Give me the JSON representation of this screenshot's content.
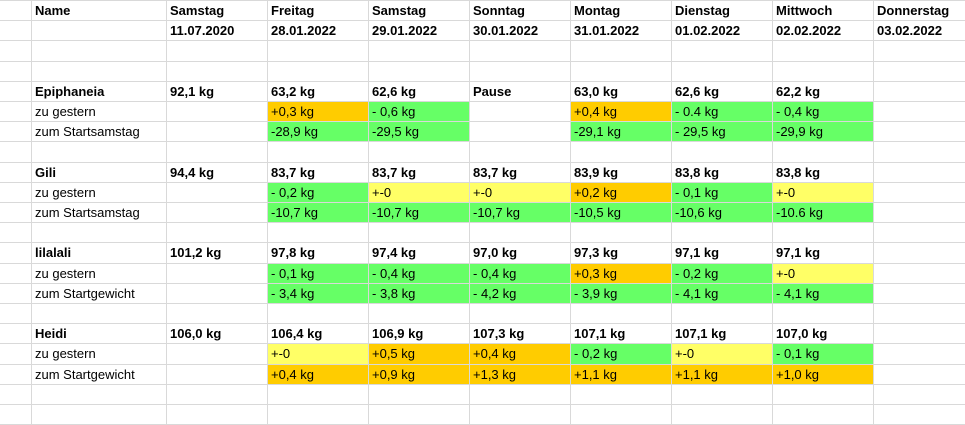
{
  "headers": {
    "name": "Name",
    "days": [
      {
        "day": "Samstag",
        "date": "11.07.2020"
      },
      {
        "day": "Freitag",
        "date": "28.01.2022"
      },
      {
        "day": "Samstag",
        "date": "29.01.2022"
      },
      {
        "day": "Sonntag",
        "date": "30.01.2022"
      },
      {
        "day": "Montag",
        "date": "31.01.2022"
      },
      {
        "day": "Dienstag",
        "date": "01.02.2022"
      },
      {
        "day": "Mittwoch",
        "date": "02.02.2022"
      },
      {
        "day": "Donnerstag",
        "date": "03.02.2022"
      }
    ]
  },
  "highlight_colors": {
    "green": "#66ff66",
    "orange": "#ffcc00",
    "yellow": "#ffff66"
  },
  "groups": [
    {
      "name": "Epiphaneia",
      "weights": [
        "92,1 kg",
        "63,2 kg",
        "62,6 kg",
        "Pause",
        "63,0 kg",
        "62,6 kg",
        "62,2 kg",
        ""
      ],
      "diff_label": "zu gestern",
      "diffs": [
        "",
        "+0,3 kg",
        "- 0,6 kg",
        "",
        "+0,4 kg",
        "- 0.4 kg",
        "- 0,4 kg",
        ""
      ],
      "diff_colors": [
        "",
        "orange",
        "green",
        "",
        "orange",
        "green",
        "green",
        ""
      ],
      "total_label": "zum Startsamstag",
      "totals": [
        "",
        "-28,9 kg",
        "-29,5 kg",
        "",
        "-29,1 kg",
        "- 29,5 kg",
        "-29,9 kg",
        ""
      ],
      "total_colors": [
        "",
        "green",
        "green",
        "",
        "green",
        "green",
        "green",
        ""
      ]
    },
    {
      "name": "Gili",
      "weights": [
        "94,4 kg",
        "83,7 kg",
        "83,7 kg",
        "83,7 kg",
        "83,9 kg",
        "83,8 kg",
        "83,8 kg",
        ""
      ],
      "diff_label": "zu gestern",
      "diffs": [
        "",
        "- 0,2 kg",
        "+-0",
        "+-0",
        "+0,2 kg",
        "- 0,1 kg",
        "+-0",
        ""
      ],
      "diff_colors": [
        "",
        "green",
        "yellow",
        "yellow",
        "orange",
        "green",
        "yellow",
        ""
      ],
      "total_label": "zum Startsamstag",
      "totals": [
        "",
        "-10,7 kg",
        "-10,7 kg",
        "-10,7 kg",
        "-10,5 kg",
        "-10,6 kg",
        "-10.6 kg",
        ""
      ],
      "total_colors": [
        "",
        "green",
        "green",
        "green",
        "green",
        "green",
        "green",
        ""
      ]
    },
    {
      "name": "lilalali",
      "weights": [
        "101,2 kg",
        "97,8 kg",
        "97,4 kg",
        "97,0 kg",
        "97,3 kg",
        "97,1 kg",
        "97,1 kg",
        ""
      ],
      "diff_label": "zu gestern",
      "diffs": [
        "",
        "- 0,1 kg",
        "- 0,4 kg",
        "- 0,4 kg",
        "+0,3 kg",
        "- 0,2 kg",
        "+-0",
        ""
      ],
      "diff_colors": [
        "",
        "green",
        "green",
        "green",
        "orange",
        "green",
        "yellow",
        ""
      ],
      "total_label": "zum Startgewicht",
      "totals": [
        "",
        "- 3,4 kg",
        "- 3,8 kg",
        "- 4,2 kg",
        "- 3,9 kg",
        "- 4,1 kg",
        "- 4,1 kg",
        ""
      ],
      "total_colors": [
        "",
        "green",
        "green",
        "green",
        "green",
        "green",
        "green",
        ""
      ]
    },
    {
      "name": "Heidi",
      "weights": [
        "106,0 kg",
        "106,4 kg",
        "106,9 kg",
        "107,3 kg",
        "107,1 kg",
        "107,1 kg",
        "107,0 kg",
        ""
      ],
      "diff_label": "zu gestern",
      "diffs": [
        "",
        "+-0",
        "+0,5 kg",
        "+0,4 kg",
        "- 0,2 kg",
        "+-0",
        "- 0,1 kg",
        ""
      ],
      "diff_colors": [
        "",
        "yellow",
        "orange",
        "orange",
        "green",
        "yellow",
        "green",
        ""
      ],
      "total_label": "zum Startgewicht",
      "totals": [
        "",
        "+0,4 kg",
        "+0,9 kg",
        "+1,3 kg",
        "+1,1 kg",
        "+1,1 kg",
        "+1,0 kg",
        ""
      ],
      "total_colors": [
        "",
        "orange",
        "orange",
        "orange",
        "orange",
        "orange",
        "orange",
        ""
      ]
    }
  ]
}
